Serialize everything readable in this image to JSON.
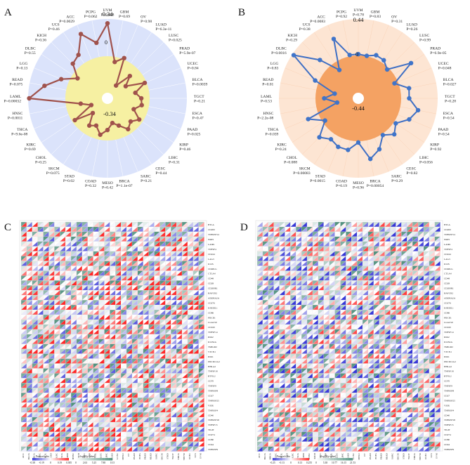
{
  "panels": {
    "a": {
      "letter": "A",
      "rmax": "0.34",
      "rmid": "0",
      "rmin": "-0.34"
    },
    "b": {
      "letter": "B",
      "rmax": "0.44",
      "rmid": "0",
      "rmin": "-0.44"
    },
    "c": {
      "letter": "C",
      "legend_title1": "Pearson's rho",
      "legend_title2": "-log10(p value)",
      "legend_ticks": [
        "-0.38",
        "-0.19",
        "0",
        "0.19",
        "0.385",
        "0",
        "2.63",
        "5.25",
        "7.88",
        "10.5"
      ]
    },
    "d": {
      "letter": "D",
      "legend_title1": "Pearson's rho",
      "legend_title2": "-log10(p value)",
      "legend_ticks": [
        "-0.25",
        "-0.13",
        "0",
        "0.13",
        "0.255",
        "0",
        "5.38",
        "10.77",
        "16.15",
        "21.53"
      ]
    }
  },
  "chart_data": [
    {
      "type": "radar",
      "panel": "A",
      "rlim": [
        -0.34,
        0.34
      ],
      "categories": [
        "UVM",
        "GBM",
        "OV",
        "LUAD",
        "LUSC",
        "PRAD",
        "UCEC",
        "BLCA",
        "TGCT",
        "ESCA",
        "PAAD",
        "KIRP",
        "LIHC",
        "CESC",
        "SARC",
        "BRCA",
        "MESO",
        "COAD",
        "STAD",
        "SKCM",
        "CHOL",
        "KIRC",
        "THCA",
        "HNSC",
        "LAML",
        "READ",
        "LGG",
        "DLBC",
        "KICH",
        "UCS",
        "ACC",
        "PCPG"
      ],
      "pvalues": [
        "P=0.028",
        "P=0.69",
        "P=0.98",
        "P=6.3e-11",
        "P=0.025",
        "P=5.9e-07",
        "P=0.84",
        "P=0.0039",
        "P=0.21",
        "P=0.47",
        "P=0.025",
        "P=0.46",
        "P=0.31",
        "P=0.44",
        "P=0.21",
        "P=1.1e-07",
        "P=0.42",
        "P=0.32",
        "P=0.02",
        "P=0.075",
        "P=0.25",
        "P=0.69",
        "P=9.6e-08",
        "P=0.0011",
        "P=0.00032",
        "P=0.075",
        "P=0.13",
        "P=0.55",
        "P=0.36",
        "P=0.46",
        "P=0.0029",
        "P=0.062"
      ],
      "values": [
        0.3,
        -0.05,
        0.01,
        -0.25,
        -0.1,
        -0.19,
        -0.02,
        -0.13,
        -0.08,
        -0.07,
        -0.13,
        -0.04,
        -0.09,
        -0.05,
        -0.12,
        -0.16,
        -0.1,
        -0.05,
        -0.12,
        -0.09,
        -0.2,
        -0.03,
        -0.23,
        -0.14,
        0.33,
        0.2,
        0.07,
        -0.06,
        0.06,
        0.09,
        0.25,
        0.13
      ]
    },
    {
      "type": "radar",
      "panel": "B",
      "rlim": [
        -0.44,
        0.44
      ],
      "categories": [
        "UVM",
        "GBM",
        "OV",
        "LUAD",
        "LUSC",
        "PRAD",
        "UCEC",
        "BLCA",
        "TGCT",
        "ESCA",
        "PAAD",
        "KIRP",
        "LIHC",
        "CESC",
        "SARC",
        "BRCA",
        "MESO",
        "COAD",
        "STAD",
        "SKCM",
        "CHOL",
        "KIRC",
        "THCA",
        "HNSC",
        "LAML",
        "READ",
        "LGG",
        "DLBC",
        "KICH",
        "UCS",
        "ACC",
        "PCPG"
      ],
      "pvalues": [
        "P=0.78",
        "P=0.83",
        "P=0.31",
        "P=0.26",
        "P=0.99",
        "P=6.9e-05",
        "P=0.048",
        "P=0.027",
        "P=0.28",
        "P=0.54",
        "P=0.54",
        "P=0.92",
        "P=0.056",
        "P=0.82",
        "P=0.29",
        "P=0.00054",
        "P=0.96",
        "P=0.19",
        "P=0.0015",
        "P=0.00083",
        "P=0.088",
        "P=0.24",
        "P=0.039",
        "P=2.2e-08",
        "P=0.53",
        "P=0.01",
        "P=0.83",
        "P=0.0016",
        "P=0.29",
        "P=0.38",
        "P=0.0083",
        "P=0.92"
      ],
      "values": [
        0.02,
        0.01,
        0.05,
        0.04,
        -0.02,
        0.25,
        -0.04,
        0.11,
        0.1,
        0.22,
        0.15,
        0.03,
        0.1,
        0.02,
        0.15,
        0.23,
        0.02,
        0.12,
        0.12,
        0.08,
        0.15,
        -0.03,
        0.14,
        -0.25,
        -0.1,
        -0.22,
        0.05,
        0.42,
        0.14,
        -0.1,
        0.26,
        0.02
      ]
    },
    {
      "type": "heatmap",
      "panel": "C",
      "columns": [
        "ACC",
        "BLCA",
        "BRCA",
        "CESC",
        "CHOL",
        "COAD",
        "DLBC",
        "ESCA",
        "GBM",
        "HNSC",
        "KICH",
        "KIRC",
        "KIRP",
        "LAML",
        "LGG",
        "LIHC",
        "LUAD",
        "LUSC",
        "MESO",
        "OV",
        "PAAD",
        "PCPG",
        "PRAD",
        "READ",
        "SARC",
        "SKCM",
        "STAD",
        "TGCT",
        "THCA",
        "THYM",
        "UCEC",
        "UCS",
        "UVM"
      ],
      "rows": [
        "BTLA",
        "CD200",
        "TNFRSF14",
        "NRP1",
        "LAIR1",
        "TNFSF4",
        "CD244",
        "LAG3",
        "ICOS",
        "CD40LG",
        "CTLA4",
        "CD48",
        "CD28",
        "CD200R1",
        "HAVCR2",
        "ADORA2A",
        "CD276",
        "KIR3DL1",
        "CD86",
        "PDCD1",
        "LGALS9",
        "CD160",
        "TNFSF14",
        "IDO2",
        "ICOSLG",
        "TMIGD2",
        "VTCN1",
        "IDO1",
        "PDCD1LG2",
        "HHLA2",
        "TNFSF18",
        "BTNL2",
        "CD70",
        "TNFSF9",
        "TNFRSF8",
        "CD27",
        "TNFRSF25",
        "VSIR",
        "TNFRSF4",
        "CD40",
        "TNFRSF18",
        "TNFSF15",
        "TIGIT",
        "CD274",
        "CD80",
        "CD44",
        "TNFRSF9"
      ],
      "legend_rho": [
        -0.38,
        0.385
      ],
      "legend_logp": [
        0,
        10.5
      ]
    },
    {
      "type": "heatmap",
      "panel": "D",
      "columns": [
        "ACC",
        "BLCA",
        "BRCA",
        "CESC",
        "CHOL",
        "COAD",
        "DLBC",
        "ESCA",
        "GBM",
        "HNSC",
        "KICH",
        "KIRC",
        "KIRP",
        "LAML",
        "LGG",
        "LIHC",
        "LUAD",
        "LUSC",
        "MESO",
        "OV",
        "PAAD",
        "PCPG",
        "PRAD",
        "READ",
        "SARC",
        "SKCM",
        "STAD",
        "TGCT",
        "THCA",
        "THYM",
        "UCEC",
        "UCS",
        "UVM"
      ],
      "rows": [
        "BTLA",
        "CD200",
        "TNFRSF14",
        "NRP1",
        "LAIR1",
        "TNFSF4",
        "CD244",
        "LAG3",
        "ICOS",
        "CD40LG",
        "CTLA4",
        "CD48",
        "CD28",
        "CD200R1",
        "HAVCR2",
        "ADORA2A",
        "CD276",
        "KIR3DL1",
        "CD86",
        "PDCD1",
        "LGALS9",
        "CD160",
        "TNFSF14",
        "IDO2",
        "ICOSLG",
        "TMIGD2",
        "VTCN1",
        "IDO1",
        "PDCD1LG2",
        "HHLA2",
        "TNFSF18",
        "BTNL2",
        "CD70",
        "TNFSF9",
        "TNFRSF8",
        "CD27",
        "TNFRSF25",
        "VSIR",
        "TNFRSF4",
        "CD40",
        "TNFRSF18",
        "TNFSF15",
        "TIGIT",
        "CD274",
        "CD80",
        "CD44",
        "TNFRSF9"
      ],
      "legend_rho": [
        -0.25,
        0.255
      ],
      "legend_logp": [
        0,
        21.53
      ]
    }
  ]
}
